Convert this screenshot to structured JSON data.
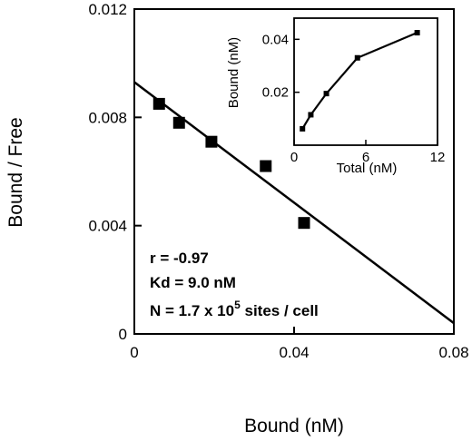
{
  "chart_data": [
    {
      "type": "scatter",
      "xlabel": "Bound (nM)",
      "ylabel": "Bound / Free",
      "xlim": [
        0,
        0.08
      ],
      "ylim": [
        0,
        0.012
      ],
      "x_ticks": [
        "0",
        "0.04",
        "0.08"
      ],
      "x_tick_values": [
        0,
        0.04,
        0.08
      ],
      "y_ticks": [
        "0",
        "0.004",
        "0.008",
        "0.012"
      ],
      "y_tick_values": [
        0,
        0.004,
        0.008,
        0.012
      ],
      "points": [
        {
          "x": 0.0062,
          "y": 0.0085
        },
        {
          "x": 0.0112,
          "y": 0.0078
        },
        {
          "x": 0.0193,
          "y": 0.0071
        },
        {
          "x": 0.0329,
          "y": 0.0062
        },
        {
          "x": 0.0425,
          "y": 0.0041
        }
      ],
      "fit_line": {
        "x": [
          0,
          0.08
        ],
        "y": [
          0.0093,
          0.0004
        ]
      },
      "annotations": {
        "r": "r = -0.97",
        "kd": "Kd = 9.0 nM",
        "n_prefix": "N = 1.7 x 10",
        "n_exp": "5",
        "n_suffix": " sites / cell"
      },
      "grid": false
    },
    {
      "type": "line",
      "xlabel": "Total (nM)",
      "ylabel": "Bound (nM)",
      "xlim": [
        0,
        12
      ],
      "ylim": [
        0,
        0.048
      ],
      "x_ticks": [
        "0",
        "6",
        "12"
      ],
      "x_tick_values": [
        0,
        6,
        12
      ],
      "y_ticks": [
        "0.02",
        "0.04"
      ],
      "y_tick_values": [
        0.02,
        0.04
      ],
      "points": [
        {
          "x": 0.7,
          "y": 0.0062
        },
        {
          "x": 1.4,
          "y": 0.0115
        },
        {
          "x": 2.7,
          "y": 0.0195
        },
        {
          "x": 5.3,
          "y": 0.033
        },
        {
          "x": 10.3,
          "y": 0.0425
        }
      ],
      "grid": false
    }
  ]
}
